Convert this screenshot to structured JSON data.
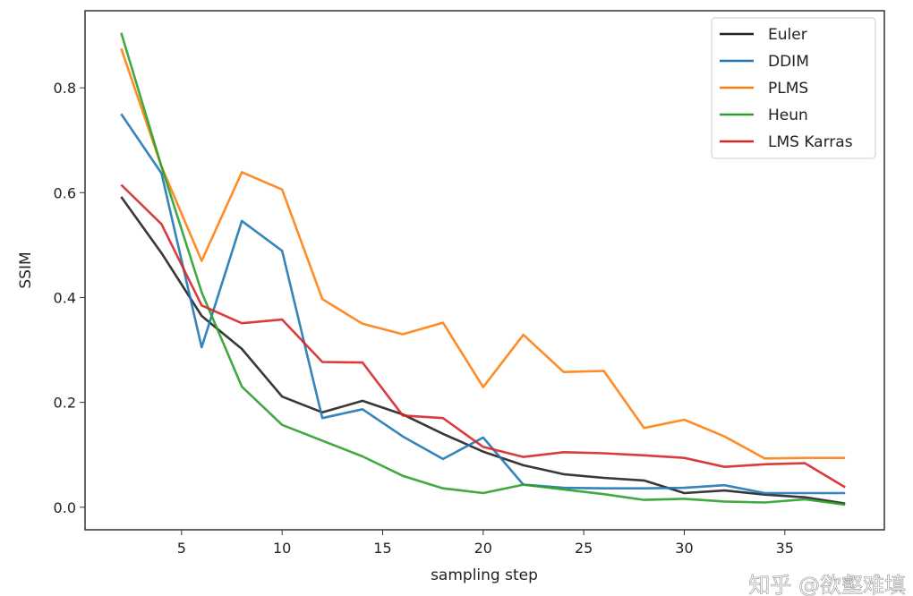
{
  "chart_data": {
    "type": "line",
    "title": "",
    "xlabel": "sampling step",
    "ylabel": "SSIM",
    "xlim": [
      0.2,
      39.95
    ],
    "ylim": [
      -0.043,
      0.947
    ],
    "xticks": [
      5,
      10,
      15,
      20,
      25,
      30,
      35
    ],
    "yticks": [
      0.0,
      0.2,
      0.4,
      0.6,
      0.8
    ],
    "ytick_labels": [
      "0.0",
      "0.2",
      "0.4",
      "0.6",
      "0.8"
    ],
    "grid": false,
    "legend_position": "top-right",
    "x": [
      2,
      4,
      6,
      8,
      10,
      12,
      14,
      16,
      18,
      20,
      22,
      24,
      26,
      28,
      30,
      32,
      34,
      36,
      38
    ],
    "series": [
      {
        "name": "Euler",
        "color": "#222222",
        "values": [
          0.592,
          0.485,
          0.365,
          0.302,
          0.211,
          0.181,
          0.203,
          0.177,
          0.14,
          0.106,
          0.08,
          0.063,
          0.056,
          0.051,
          0.027,
          0.032,
          0.024,
          0.019,
          0.007
        ]
      },
      {
        "name": "DDIM",
        "color": "#1f77b4",
        "values": [
          0.75,
          0.637,
          0.305,
          0.546,
          0.489,
          0.17,
          0.187,
          0.135,
          0.092,
          0.133,
          0.043,
          0.037,
          0.036,
          0.036,
          0.037,
          0.042,
          0.027,
          0.027,
          0.027
        ]
      },
      {
        "name": "PLMS",
        "color": "#ff7f0e",
        "values": [
          0.875,
          0.65,
          0.47,
          0.639,
          0.606,
          0.397,
          0.35,
          0.33,
          0.352,
          0.229,
          0.329,
          0.258,
          0.26,
          0.151,
          0.167,
          0.135,
          0.093,
          0.094,
          0.094
        ]
      },
      {
        "name": "Heun",
        "color": "#2ca02c",
        "values": [
          0.905,
          0.65,
          0.41,
          0.23,
          0.157,
          0.127,
          0.097,
          0.06,
          0.036,
          0.027,
          0.043,
          0.034,
          0.025,
          0.014,
          0.016,
          0.011,
          0.009,
          0.015,
          0.005
        ]
      },
      {
        "name": "LMS Karras",
        "color": "#d62728",
        "values": [
          0.615,
          0.54,
          0.385,
          0.351,
          0.358,
          0.277,
          0.276,
          0.175,
          0.17,
          0.115,
          0.096,
          0.105,
          0.103,
          0.099,
          0.094,
          0.077,
          0.082,
          0.084,
          0.038
        ]
      }
    ]
  },
  "watermark": "知乎 @欲壑难填"
}
